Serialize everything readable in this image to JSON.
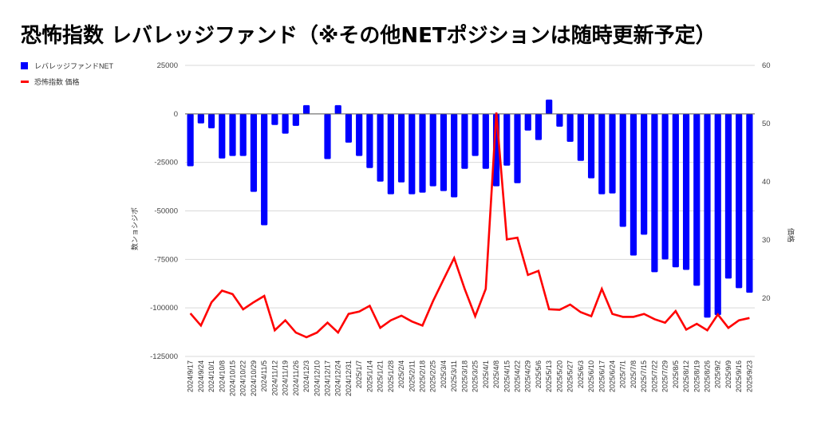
{
  "title": "恐怖指数 レバレッジファンド（※その他NETポジションは随時更新予定）",
  "colors": {
    "bar": "#0000ff",
    "line": "#ff0000",
    "grid": "#d9d9d9",
    "zero": "#555555"
  },
  "chart_data": {
    "type": "bar+line",
    "title": "恐怖指数 レバレッジファンド（※その他NETポジションは随時更新予定）",
    "legend": [
      {
        "label": "レバレッジファンドNET",
        "type": "bar",
        "axis": "left"
      },
      {
        "label": "恐怖指数 価格",
        "type": "line",
        "axis": "right"
      }
    ],
    "legend_position": "top-left",
    "ylabel_left": "数ンョシジポ",
    "ylabel_right": "価格",
    "ylim_left": [
      -125000,
      25000
    ],
    "yticks_left": [
      "25000",
      "0",
      "-25000",
      "-50000",
      "-75000",
      "-100000",
      "-125000"
    ],
    "ylim_right": [
      10,
      60
    ],
    "yticks_right": [
      "60",
      "50",
      "40",
      "30",
      "20"
    ],
    "grid": true,
    "categories": [
      "2024/9/17",
      "2024/9/24",
      "2024/10/1",
      "2024/10/8",
      "2024/10/15",
      "2024/10/22",
      "2024/10/29",
      "2024/11/5",
      "2024/11/12",
      "2024/11/19",
      "2024/11/26",
      "2024/12/3",
      "2024/12/10",
      "2024/12/17",
      "2024/12/24",
      "2024/12/31",
      "2025/1/7",
      "2025/1/14",
      "2025/1/21",
      "2025/1/28",
      "2025/2/4",
      "2025/2/11",
      "2025/2/18",
      "2025/2/25",
      "2025/3/4",
      "2025/3/11",
      "2025/3/18",
      "2025/3/25",
      "2025/4/1",
      "2025/4/8",
      "2025/4/15",
      "2025/4/22",
      "2025/4/29",
      "2025/5/6",
      "2025/5/13",
      "2025/5/20",
      "2025/5/27",
      "2025/6/3",
      "2025/6/10",
      "2025/6/17",
      "2025/6/24",
      "2025/7/1",
      "2025/7/8",
      "2025/7/15",
      "2025/7/22",
      "2025/7/29",
      "2025/8/5",
      "2025/8/12",
      "2025/8/19",
      "2025/8/26",
      "2025/9/2",
      "2025/9/9",
      "2025/9/16",
      "2025/9/23"
    ],
    "series": [
      {
        "name": "レバレッジファンドNET",
        "type": "bar",
        "axis": "left",
        "values": [
          -27000,
          -4900,
          -7400,
          -23000,
          -21700,
          -21700,
          -40200,
          -57400,
          -5700,
          -10200,
          -6200,
          4500,
          null,
          -23300,
          4500,
          -14800,
          -21700,
          -27900,
          -34900,
          -41400,
          -35300,
          -41400,
          -40600,
          -37300,
          -39800,
          -43000,
          -28300,
          -21700,
          -28300,
          -37300,
          -26700,
          -35700,
          -8600,
          -13500,
          7400,
          -6600,
          -14400,
          -24200,
          -33200,
          -41400,
          -41000,
          -58200,
          -73000,
          -62300,
          -81600,
          -75000,
          -79100,
          -80400,
          -88600,
          -105000,
          -103700,
          -84900,
          -89800,
          -92200
        ]
      },
      {
        "name": "恐怖指数 価格",
        "type": "line",
        "axis": "right",
        "values": [
          17.4,
          15.3,
          19.3,
          21.3,
          20.7,
          18.1,
          19.3,
          20.4,
          14.5,
          16.2,
          14.1,
          13.3,
          14.1,
          15.8,
          14.1,
          17.3,
          17.7,
          18.7,
          14.9,
          16.2,
          17.0,
          16.0,
          15.3,
          19.5,
          23.2,
          26.9,
          21.6,
          16.9,
          21.6,
          51.9,
          30.1,
          30.4,
          24.0,
          24.7,
          18.1,
          18.0,
          18.9,
          17.6,
          16.9,
          21.6,
          17.3,
          16.8,
          16.8,
          17.3,
          16.4,
          15.8,
          17.8,
          14.6,
          15.6,
          14.5,
          17.2,
          14.9,
          16.2,
          16.6
        ]
      }
    ]
  }
}
